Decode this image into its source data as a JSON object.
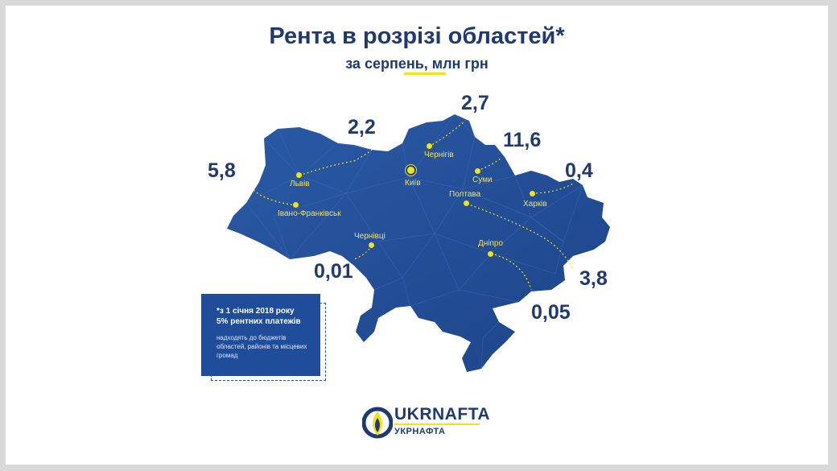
{
  "title": "Рента в розрізі областей*",
  "subtitle": "за серпень, млн грн",
  "colors": {
    "map_fill": "#234f98",
    "map_dark": "#1a3c7a",
    "text": "#1f3a73",
    "accent": "#f2e21b"
  },
  "regions": [
    {
      "city": "Львів",
      "value": "5,8",
      "map_icon": "dot-marker-icon"
    },
    {
      "city": "Івано-Франківськ",
      "value": "2,2",
      "map_icon": "dot-marker-icon"
    },
    {
      "city": "Чернігів",
      "value": "2,7",
      "map_icon": "dot-marker-icon"
    },
    {
      "city": "Суми",
      "value": "11,6",
      "map_icon": "dot-marker-icon"
    },
    {
      "city": "Харків",
      "value": "0,4",
      "map_icon": "dot-marker-icon"
    },
    {
      "city": "Полтава",
      "value": "3,8",
      "map_icon": "dot-marker-icon"
    },
    {
      "city": "Дніпро",
      "value": "0,05",
      "map_icon": "dot-marker-icon"
    },
    {
      "city": "Чернівці",
      "value": "0,01",
      "map_icon": "dot-marker-icon"
    }
  ],
  "capital": {
    "city": "Київ",
    "map_icon": "capital-marker-icon"
  },
  "note": {
    "line1": "*з 1 січня 2018 року",
    "line2": "5% рентних платежів",
    "small": "надходять до бюджетів областей, районів та місцевих громад"
  },
  "logo": {
    "word": "UKRNAFTA",
    "sub": "УКРНАФТА",
    "icon": "ukrnafta-logo-icon"
  }
}
